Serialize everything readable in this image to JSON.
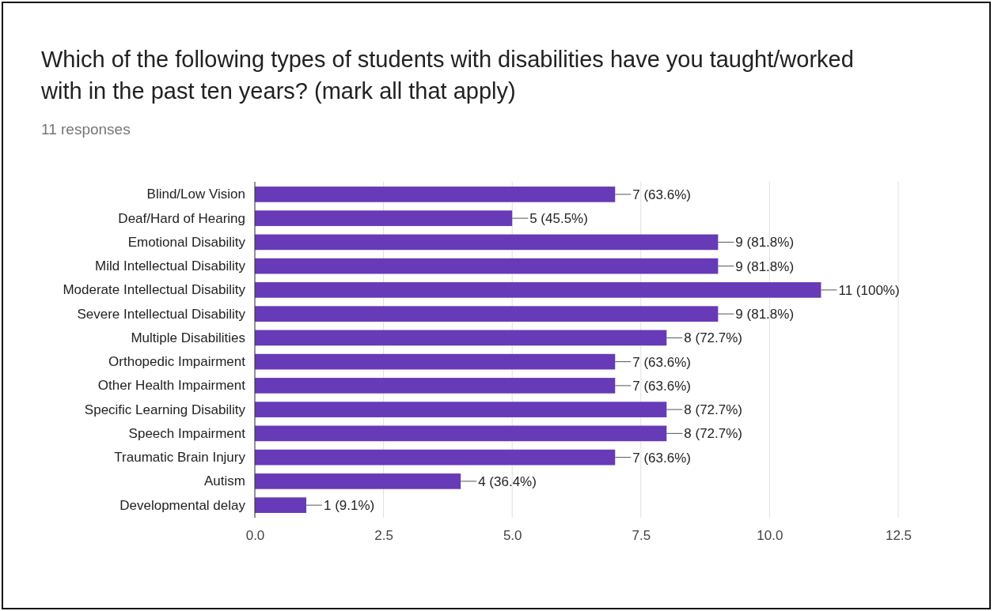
{
  "chart_data": {
    "type": "bar",
    "orientation": "horizontal",
    "title": "Which of the following types of students with disabilities have you taught/worked with in the past ten years? (mark all that apply)",
    "subtitle": "11 responses",
    "categories": [
      "Blind/Low Vision",
      "Deaf/Hard of Hearing",
      "Emotional Disability",
      "Mild Intellectual Disability",
      "Moderate Intellectual Disability",
      "Severe Intellectual Disability",
      "Multiple Disabilities",
      "Orthopedic Impairment",
      "Other Health Impairment",
      "Specific Learning Disability",
      "Speech Impairment",
      "Traumatic Brain Injury",
      "Autism",
      "Developmental delay"
    ],
    "values": [
      7,
      5,
      9,
      9,
      11,
      9,
      8,
      7,
      7,
      8,
      8,
      7,
      4,
      1
    ],
    "value_labels": [
      "7 (63.6%)",
      "5 (45.5%)",
      "9 (81.8%)",
      "9 (81.8%)",
      "11 (100%)",
      "9 (81.8%)",
      "8 (72.7%)",
      "7 (63.6%)",
      "7 (63.6%)",
      "8 (72.7%)",
      "8 (72.7%)",
      "7 (63.6%)",
      "4 (36.4%)",
      "1 (9.1%)"
    ],
    "color": "#673ab7",
    "xlim": [
      0,
      12.5
    ],
    "xticks": [
      {
        "value": 0,
        "label": "0.0"
      },
      {
        "value": 2.5,
        "label": "2.5"
      },
      {
        "value": 5,
        "label": "5.0"
      },
      {
        "value": 7.5,
        "label": "7.5"
      },
      {
        "value": 10,
        "label": "10.0"
      },
      {
        "value": 12.5,
        "label": "12.5"
      }
    ],
    "grid": "x"
  }
}
